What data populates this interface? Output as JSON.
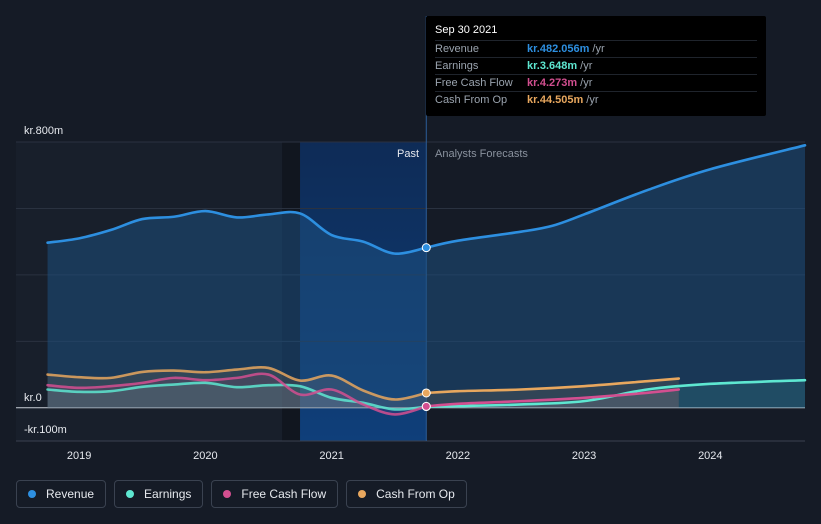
{
  "chart_data": {
    "type": "line",
    "y_axis": {
      "unit_prefix": "kr.",
      "ylim": [
        -100,
        800
      ],
      "top_label": "kr.800m",
      "zero_label": "kr.0",
      "bottom_label": "-kr.100m"
    },
    "x_axis": {
      "ticks": [
        "2019",
        "2020",
        "2021",
        "2022",
        "2023",
        "2024"
      ],
      "xlim": [
        2018.5,
        2024.75
      ]
    },
    "past_label": "Past",
    "forecast_label": "Analysts Forecasts",
    "divider_x": 2021.75,
    "shade_start_x": 2020.75,
    "dark_band": [
      2020.75,
      2021.75
    ],
    "series": [
      {
        "name": "Revenue",
        "color": "#2d8fe0",
        "past": [
          [
            2018.75,
            497
          ],
          [
            2019.0,
            510
          ],
          [
            2019.25,
            535
          ],
          [
            2019.5,
            568
          ],
          [
            2019.75,
            575
          ],
          [
            2020.0,
            592
          ],
          [
            2020.25,
            573
          ],
          [
            2020.5,
            582
          ],
          [
            2020.75,
            585
          ],
          [
            2021.0,
            520
          ],
          [
            2021.25,
            500
          ],
          [
            2021.5,
            464
          ],
          [
            2021.75,
            482
          ]
        ],
        "forecast": [
          [
            2022.0,
            503
          ],
          [
            2022.5,
            530
          ],
          [
            2022.75,
            548
          ],
          [
            2023.0,
            582
          ],
          [
            2023.5,
            655
          ],
          [
            2024.0,
            718
          ],
          [
            2024.75,
            790
          ]
        ]
      },
      {
        "name": "Earnings",
        "color": "#5ee7d1",
        "past": [
          [
            2018.75,
            55
          ],
          [
            2019.0,
            48
          ],
          [
            2019.25,
            50
          ],
          [
            2019.5,
            63
          ],
          [
            2019.75,
            70
          ],
          [
            2020.0,
            75
          ],
          [
            2020.25,
            62
          ],
          [
            2020.5,
            68
          ],
          [
            2020.75,
            65
          ],
          [
            2021.0,
            30
          ],
          [
            2021.25,
            15
          ],
          [
            2021.5,
            -5
          ],
          [
            2021.75,
            3.6
          ]
        ],
        "forecast": [
          [
            2022.0,
            5
          ],
          [
            2022.5,
            10
          ],
          [
            2023.0,
            20
          ],
          [
            2023.5,
            55
          ],
          [
            2024.0,
            72
          ],
          [
            2024.75,
            83
          ]
        ]
      },
      {
        "name": "Free Cash Flow",
        "color": "#d34f90",
        "past": [
          [
            2018.75,
            68
          ],
          [
            2019.0,
            60
          ],
          [
            2019.25,
            65
          ],
          [
            2019.5,
            75
          ],
          [
            2019.75,
            90
          ],
          [
            2020.0,
            83
          ],
          [
            2020.25,
            90
          ],
          [
            2020.5,
            100
          ],
          [
            2020.75,
            40
          ],
          [
            2021.0,
            55
          ],
          [
            2021.25,
            10
          ],
          [
            2021.5,
            -20
          ],
          [
            2021.75,
            4.3
          ]
        ],
        "forecast": [
          [
            2022.0,
            12
          ],
          [
            2022.5,
            20
          ],
          [
            2023.0,
            30
          ],
          [
            2023.5,
            45
          ],
          [
            2023.75,
            55
          ]
        ]
      },
      {
        "name": "Cash From Op",
        "color": "#e8a75e",
        "past": [
          [
            2018.75,
            100
          ],
          [
            2019.0,
            92
          ],
          [
            2019.25,
            90
          ],
          [
            2019.5,
            108
          ],
          [
            2019.75,
            112
          ],
          [
            2020.0,
            107
          ],
          [
            2020.25,
            115
          ],
          [
            2020.5,
            120
          ],
          [
            2020.75,
            82
          ],
          [
            2021.0,
            97
          ],
          [
            2021.25,
            52
          ],
          [
            2021.5,
            25
          ],
          [
            2021.75,
            44.5
          ]
        ],
        "forecast": [
          [
            2022.0,
            50
          ],
          [
            2022.5,
            55
          ],
          [
            2023.0,
            65
          ],
          [
            2023.5,
            80
          ],
          [
            2023.75,
            88
          ]
        ]
      }
    ]
  },
  "tooltip": {
    "date": "Sep 30 2021",
    "rows": [
      {
        "label": "Revenue",
        "value": "kr.482.056m",
        "unit": "/yr",
        "color": "#2d8fe0"
      },
      {
        "label": "Earnings",
        "value": "kr.3.648m",
        "unit": "/yr",
        "color": "#5ee7d1"
      },
      {
        "label": "Free Cash Flow",
        "value": "kr.4.273m",
        "unit": "/yr",
        "color": "#d34f90"
      },
      {
        "label": "Cash From Op",
        "value": "kr.44.505m",
        "unit": "/yr",
        "color": "#e8a75e"
      }
    ]
  },
  "legend": [
    {
      "label": "Revenue",
      "color": "#2d8fe0"
    },
    {
      "label": "Earnings",
      "color": "#5ee7d1"
    },
    {
      "label": "Free Cash Flow",
      "color": "#d34f90"
    },
    {
      "label": "Cash From Op",
      "color": "#e8a75e"
    }
  ]
}
